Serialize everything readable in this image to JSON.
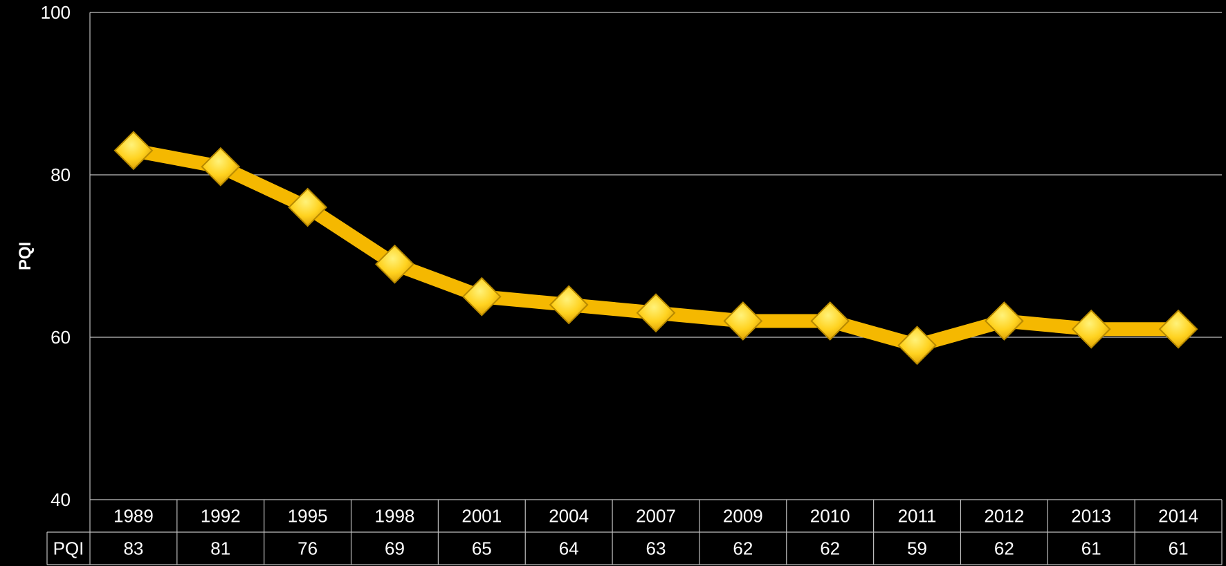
{
  "chart_data": {
    "type": "line",
    "title": "",
    "xlabel": "",
    "ylabel": "PQI",
    "ylim": [
      40,
      100
    ],
    "yticks": [
      40,
      60,
      80,
      100
    ],
    "grid": true,
    "categories": [
      "1989",
      "1992",
      "1995",
      "1998",
      "2001",
      "2004",
      "2007",
      "2009",
      "2010",
      "2011",
      "2012",
      "2013",
      "2014"
    ],
    "series": [
      {
        "name": "PQI",
        "values": [
          83,
          81,
          76,
          69,
          65,
          64,
          63,
          62,
          62,
          59,
          62,
          61,
          61
        ]
      }
    ],
    "data_table": true
  },
  "colors": {
    "background": "#000000",
    "line": "#F5B800",
    "marker": "#FFD21F",
    "marker_edge": "#B88A00",
    "grid": "#BFBFBF",
    "text": "#FFFFFF"
  }
}
